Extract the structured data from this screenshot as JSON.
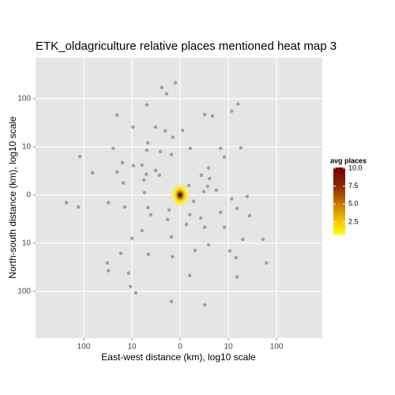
{
  "chart_data": {
    "type": "scatter",
    "title": "ETK_oldagriculture relative places mentioned heat map 3",
    "x_label": "East-west distance (km), log10 scale",
    "y_label": "North-south distance (km), log10 scale",
    "xlim": [
      -3,
      2.95
    ],
    "ylim": [
      -2.97,
      2.85
    ],
    "xticks": [
      {
        "value": -2,
        "label": "100"
      },
      {
        "value": -1,
        "label": "10"
      },
      0,
      {
        "value": 1,
        "label": "10"
      },
      {
        "value": 2,
        "label": "100"
      }
    ],
    "yticks": [
      {
        "value": -2,
        "label": "100"
      },
      {
        "value": -1,
        "label": "10"
      },
      0,
      {
        "value": 1,
        "label": "10"
      },
      {
        "value": 2,
        "label": "100"
      }
    ],
    "grid": true,
    "point_color": "#7a7a7a",
    "x": [
      -0.38,
      -0.1,
      -0.28,
      -0.69,
      1.2,
      1.07,
      -1.31,
      0.51,
      0.67,
      -0.51,
      -0.98,
      0.05,
      -0.31,
      -0.67,
      -0.15,
      -0.69,
      0.21,
      -0.41,
      0.84,
      -1.39,
      -2.08,
      0.92,
      1.26,
      -0.18,
      -1.2,
      -0.97,
      -0.79,
      -0.51,
      -1.82,
      -1.31,
      0.59,
      0.44,
      -0.7,
      -0.43,
      0.61,
      0.75,
      0.57,
      -1.18,
      -0.75,
      0.18,
      0.49,
      -0.74,
      -2.36,
      -2.11,
      -1.49,
      0.28,
      1.07,
      1.39,
      1.18,
      1.44,
      -1.15,
      -0.67,
      -0.23,
      -0.61,
      0.2,
      0.43,
      0.84,
      0.92,
      0.51,
      -0.26,
      0.13,
      -0.18,
      -0.79,
      -1.0,
      1.3,
      1.72,
      0.59,
      0.31,
      1.03,
      -1.23,
      -0.66,
      -0.16,
      -1.51,
      -1.49,
      -1.07,
      1.16,
      1.18,
      1.79,
      -1.03,
      -0.92,
      0.2,
      -0.18,
      0.51
    ],
    "y": [
      2.23,
      2.33,
      2.1,
      1.87,
      1.89,
      1.74,
      1.66,
      1.67,
      1.64,
      1.41,
      1.41,
      1.34,
      1.33,
      1.08,
      1.2,
      0.93,
      0.97,
      0.9,
      0.97,
      0.97,
      0.8,
      0.79,
      0.98,
      0.84,
      0.67,
      0.61,
      0.62,
      0.51,
      0.46,
      0.48,
      0.56,
      0.41,
      0.43,
      0.41,
      0.34,
      0.1,
      0.18,
      0.25,
      0.31,
      0.2,
      0.07,
      0.05,
      -0.16,
      -0.25,
      -0.16,
      -0.13,
      -0.08,
      -0.03,
      -0.28,
      -0.43,
      -0.25,
      -0.26,
      -0.31,
      -0.41,
      -0.41,
      -0.48,
      -0.36,
      -0.67,
      -0.67,
      -0.51,
      -0.61,
      -0.87,
      -0.74,
      -0.9,
      -0.92,
      -0.92,
      -1.03,
      -1.15,
      -1.16,
      -1.21,
      -1.23,
      -1.28,
      -1.41,
      -1.57,
      -1.62,
      -1.3,
      -1.7,
      -1.41,
      -1.9,
      -2.03,
      -1.67,
      -2.21,
      -2.28
    ],
    "hotspot": {
      "x": 0,
      "y": 0,
      "value": 10
    },
    "legend": {
      "title": "avg places",
      "limits": [
        0.74,
        10.1
      ],
      "colors": [
        "#ffff00",
        "#f0b800",
        "#c06a00",
        "#8b2000",
        "#7a0000"
      ],
      "ticks": [
        2.5,
        {
          "value": 5,
          "label": "5.0"
        },
        {
          "value": 7.5,
          "label": "7.5"
        },
        {
          "value": 10,
          "label": "10.0"
        }
      ]
    }
  }
}
